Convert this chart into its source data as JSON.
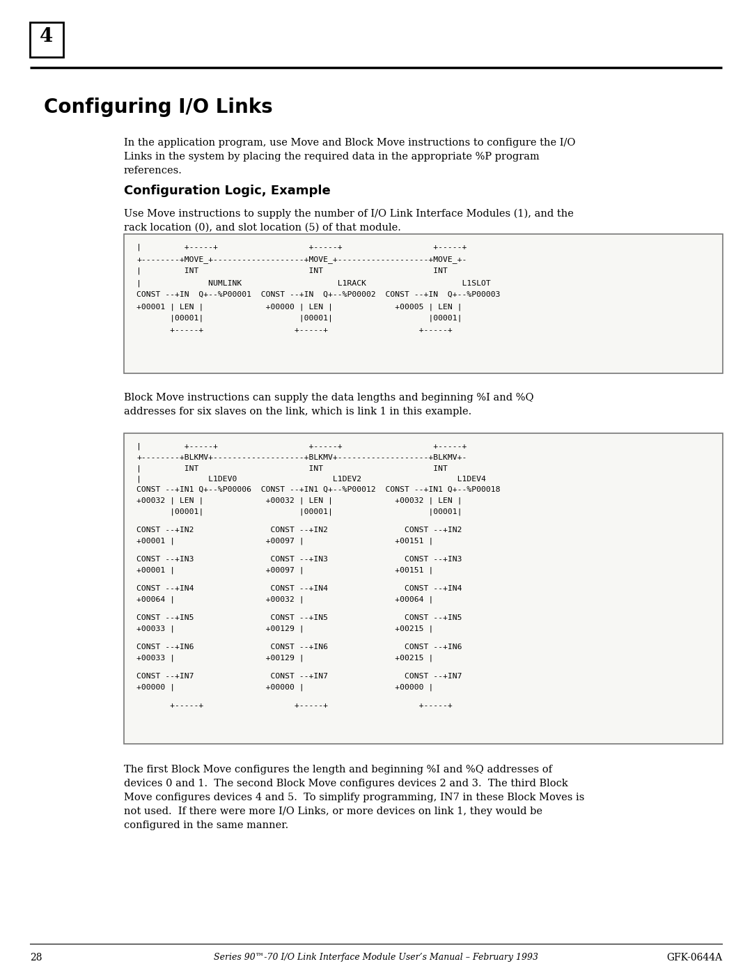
{
  "page_number": "4",
  "chapter_title": "Configuring I/O Links",
  "intro_text": "In the application program, use Move and Block Move instructions to configure the I/O\nLinks in the system by placing the required data in the appropriate %P program\nreferences.",
  "section_title": "Configuration Logic, Example",
  "section_intro": "Use Move instructions to supply the number of I/O Link Interface Modules (1), and the\nrack location (0), and slot location (5) of that module.",
  "diag1_lines": [
    "|         +-----+                   +-----+                   +-----+",
    "+--------+MOVE_+-------------------+MOVE_+-------------------+MOVE_+-",
    "|         INT                       INT                       INT",
    "|              NUMLINK                    L1RACK                    L1SLOT",
    "CONST --+IN  Q+--%P00001  CONST --+IN  Q+--%P00002  CONST --+IN  Q+--%P00003",
    "+00001 | LEN |             +00000 | LEN |             +00005 | LEN |",
    "       |00001|                    |00001|                    |00001|",
    "       +-----+                   +-----+                   +-----+"
  ],
  "mid_text": "Block Move instructions can supply the data lengths and beginning %I and %Q\naddresses for six slaves on the link, which is link 1 in this example.",
  "diag2_lines": [
    "|         +-----+                   +-----+                   +-----+",
    "+--------+BLKMV+-------------------+BLKMV+-------------------+BLKMV+-",
    "|         INT                       INT                       INT",
    "|              L1DEV0                    L1DEV2                    L1DEV4",
    "CONST --+IN1 Q+--%P00006  CONST --+IN1 Q+--%P00012  CONST --+IN1 Q+--%P00018",
    "+00032 | LEN |             +00032 | LEN |             +00032 | LEN |",
    "       |00001|                    |00001|                    |00001|",
    "",
    "CONST --+IN2                CONST --+IN2                CONST --+IN2",
    "+00001 |                   +00097 |                   +00151 |",
    "",
    "CONST --+IN3                CONST --+IN3                CONST --+IN3",
    "+00001 |                   +00097 |                   +00151 |",
    "",
    "CONST --+IN4                CONST --+IN4                CONST --+IN4",
    "+00064 |                   +00032 |                   +00064 |",
    "",
    "CONST --+IN5                CONST --+IN5                CONST --+IN5",
    "+00033 |                   +00129 |                   +00215 |",
    "",
    "CONST --+IN6                CONST --+IN6                CONST --+IN6",
    "+00033 |                   +00129 |                   +00215 |",
    "",
    "CONST --+IN7                CONST --+IN7                CONST --+IN7",
    "+00000 |                   +00000 |                   +00000 |",
    "       +-----+                   +-----+                   +-----+"
  ],
  "footer_text": "The first Block Move configures the length and beginning %I and %Q addresses of\ndevices 0 and 1.  The second Block Move configures devices 2 and 3.  The third Block\nMove configures devices 4 and 5.  To simplify programming, IN7 in these Block Moves is\nnot used.  If there were more I/O Links, or more devices on link 1, they would be\nconfigured in the same manner.",
  "page_num_text": "28",
  "footer_center": "Series 90™-70 I/O Link Interface Module User’s Manual – February 1993",
  "footer_right": "GFK-0644A",
  "bg_color": "#ffffff"
}
